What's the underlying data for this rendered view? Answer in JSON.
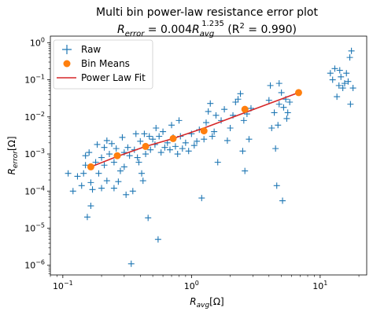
{
  "chart_data": {
    "type": "scatter",
    "title": "Multi bin power-law resistance error plot",
    "subtitle": "R_error = 0.004R_avg^1.235 (R² = 0.990)",
    "subtitle_parts": {
      "r": "R",
      "error_sub": "error",
      "equals": " = 0.004",
      "avg_sub": "avg",
      "exponent": "1.235",
      "r2": " (R",
      "r2_sup": "2",
      "r2_tail": " = 0.990)"
    },
    "xlabel": "R_avg[Ω]",
    "xlabel_parts": {
      "r": "R",
      "sub": "avg",
      "unit": "[Ω]"
    },
    "ylabel": "R_error[Ω]",
    "ylabel_parts": {
      "r": "R",
      "sub": "error",
      "unit": "[Ω]"
    },
    "x_scale": "log",
    "y_scale": "log",
    "xlim": [
      0.08,
      23
    ],
    "ylim": [
      5.5e-07,
      1.5
    ],
    "x_ticks": [
      {
        "value": 0.1,
        "base": "10",
        "exp": "−1"
      },
      {
        "value": 1,
        "base": "10",
        "exp": "0"
      },
      {
        "value": 10,
        "base": "10",
        "exp": "1"
      }
    ],
    "y_ticks": [
      {
        "value": 1e-06,
        "base": "10",
        "exp": "−6"
      },
      {
        "value": 1e-05,
        "base": "10",
        "exp": "−5"
      },
      {
        "value": 0.0001,
        "base": "10",
        "exp": "−4"
      },
      {
        "value": 0.001,
        "base": "10",
        "exp": "−3"
      },
      {
        "value": 0.01,
        "base": "10",
        "exp": "−2"
      },
      {
        "value": 0.1,
        "base": "10",
        "exp": "−1"
      },
      {
        "value": 1,
        "base": "10",
        "exp": "0"
      }
    ],
    "grid": false,
    "legend": {
      "placement": "top-left",
      "entries": [
        "Raw",
        "Bin Means",
        "Power Law Fit"
      ]
    },
    "series": [
      {
        "name": "Raw",
        "kind": "scatter",
        "marker": "plus",
        "color": "#1f77b4",
        "points": [
          [
            0.11,
            0.0003
          ],
          [
            0.12,
            0.0001
          ],
          [
            0.13,
            0.00025
          ],
          [
            0.14,
            0.00014
          ],
          [
            0.145,
            0.0003
          ],
          [
            0.15,
            0.0005
          ],
          [
            0.15,
            0.0009
          ],
          [
            0.155,
            2e-05
          ],
          [
            0.16,
            0.0011
          ],
          [
            0.165,
            4e-05
          ],
          [
            0.165,
            0.00017
          ],
          [
            0.17,
            0.00011
          ],
          [
            0.18,
            0.0006
          ],
          [
            0.185,
            0.0018
          ],
          [
            0.19,
            0.0003
          ],
          [
            0.2,
            0.00012
          ],
          [
            0.2,
            0.0008
          ],
          [
            0.21,
            0.0015
          ],
          [
            0.21,
            0.0005
          ],
          [
            0.22,
            0.0023
          ],
          [
            0.22,
            0.00019
          ],
          [
            0.23,
            0.001
          ],
          [
            0.24,
            0.0019
          ],
          [
            0.25,
            0.0006
          ],
          [
            0.25,
            0.00012
          ],
          [
            0.26,
            0.0014
          ],
          [
            0.27,
            0.00018
          ],
          [
            0.28,
            0.00035
          ],
          [
            0.29,
            0.0028
          ],
          [
            0.3,
            0.0011
          ],
          [
            0.3,
            0.00045
          ],
          [
            0.31,
            8e-05
          ],
          [
            0.32,
            0.0015
          ],
          [
            0.33,
            0.0009
          ],
          [
            0.34,
            1.1e-06
          ],
          [
            0.35,
            0.0001
          ],
          [
            0.36,
            0.0013
          ],
          [
            0.37,
            0.0035
          ],
          [
            0.38,
            0.0008
          ],
          [
            0.39,
            0.0006
          ],
          [
            0.4,
            0.0022
          ],
          [
            0.41,
            0.0003
          ],
          [
            0.42,
            0.00019
          ],
          [
            0.43,
            0.0035
          ],
          [
            0.44,
            0.001
          ],
          [
            0.46,
            1.9e-05
          ],
          [
            0.47,
            0.003
          ],
          [
            0.48,
            0.0013
          ],
          [
            0.5,
            0.0025
          ],
          [
            0.52,
            0.0018
          ],
          [
            0.53,
            0.005
          ],
          [
            0.55,
            5e-06
          ],
          [
            0.56,
            0.003
          ],
          [
            0.58,
            0.0011
          ],
          [
            0.6,
            0.004
          ],
          [
            0.62,
            0.0015
          ],
          [
            0.65,
            0.002
          ],
          [
            0.68,
            0.0013
          ],
          [
            0.7,
            0.006
          ],
          [
            0.72,
            0.0028
          ],
          [
            0.75,
            0.0016
          ],
          [
            0.78,
            0.001
          ],
          [
            0.8,
            0.008
          ],
          [
            0.82,
            0.003
          ],
          [
            0.85,
            0.0014
          ],
          [
            0.9,
            0.002
          ],
          [
            0.95,
            0.0012
          ],
          [
            1.0,
            0.0035
          ],
          [
            1.05,
            0.0017
          ],
          [
            1.1,
            0.0022
          ],
          [
            1.15,
            0.0045
          ],
          [
            1.2,
            6.5e-05
          ],
          [
            1.25,
            0.0025
          ],
          [
            1.3,
            0.007
          ],
          [
            1.35,
            0.014
          ],
          [
            1.4,
            0.023
          ],
          [
            1.45,
            0.003
          ],
          [
            1.5,
            0.004
          ],
          [
            1.55,
            0.011
          ],
          [
            1.6,
            0.0006
          ],
          [
            1.7,
            0.008
          ],
          [
            1.8,
            0.016
          ],
          [
            1.9,
            0.0023
          ],
          [
            2.0,
            0.005
          ],
          [
            2.1,
            0.011
          ],
          [
            2.2,
            0.025
          ],
          [
            2.3,
            0.03
          ],
          [
            2.4,
            0.042
          ],
          [
            2.5,
            0.0012
          ],
          [
            2.55,
            0.008
          ],
          [
            2.6,
            0.00035
          ],
          [
            2.7,
            0.012
          ],
          [
            2.8,
            0.0025
          ],
          [
            2.9,
            0.017
          ],
          [
            4.0,
            0.028
          ],
          [
            4.2,
            0.005
          ],
          [
            4.4,
            0.013
          ],
          [
            4.5,
            0.0014
          ],
          [
            4.6,
            0.00014
          ],
          [
            4.7,
            0.006
          ],
          [
            4.8,
            0.022
          ],
          [
            5.0,
            0.045
          ],
          [
            5.1,
            5.5e-05
          ],
          [
            5.2,
            0.018
          ],
          [
            5.4,
            0.03
          ],
          [
            5.5,
            0.009
          ],
          [
            5.6,
            0.013
          ],
          [
            4.8,
            0.08
          ],
          [
            4.1,
            0.07
          ],
          [
            5.8,
            0.025
          ],
          [
            12.0,
            0.15
          ],
          [
            12.5,
            0.1
          ],
          [
            13.0,
            0.2
          ],
          [
            13.5,
            0.035
          ],
          [
            14.0,
            0.07
          ],
          [
            14.5,
            0.12
          ],
          [
            15.0,
            0.06
          ],
          [
            15.5,
            0.08
          ],
          [
            16.0,
            0.15
          ],
          [
            17.0,
            0.4
          ],
          [
            17.5,
            0.6
          ],
          [
            18.0,
            0.06
          ],
          [
            17.2,
            0.022
          ],
          [
            14.2,
            0.18
          ],
          [
            16.5,
            0.09
          ]
        ]
      },
      {
        "name": "Bin Means",
        "kind": "scatter",
        "marker": "circle",
        "color": "#ff7f0e",
        "points": [
          [
            0.165,
            0.00045
          ],
          [
            0.265,
            0.0009
          ],
          [
            0.44,
            0.0016
          ],
          [
            0.72,
            0.0026
          ],
          [
            1.25,
            0.0042
          ],
          [
            2.6,
            0.016
          ],
          [
            6.8,
            0.045
          ]
        ]
      },
      {
        "name": "Power Law Fit",
        "kind": "line",
        "color": "#d62728",
        "points": [
          [
            0.165,
            0.00045
          ],
          [
            0.265,
            0.00086
          ],
          [
            0.44,
            0.0016
          ],
          [
            0.72,
            0.0026
          ],
          [
            1.25,
            0.005
          ],
          [
            2.6,
            0.013
          ],
          [
            6.8,
            0.045
          ]
        ]
      }
    ]
  }
}
